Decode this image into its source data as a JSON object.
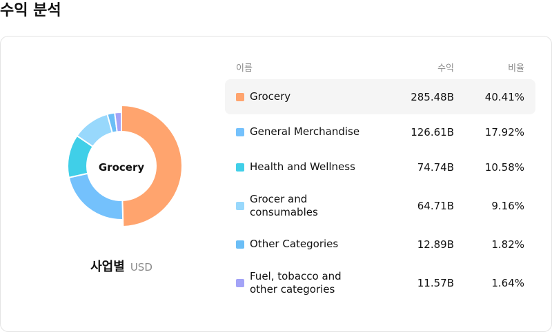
{
  "page": {
    "title": "수익 분석"
  },
  "chart": {
    "center_label": "Grocery",
    "caption": "사업별",
    "unit": "USD"
  },
  "table": {
    "headers": {
      "name": "이름",
      "revenue": "수익",
      "ratio": "비율"
    }
  },
  "chart_data": {
    "type": "pie",
    "title": "",
    "categories": [
      "Grocery",
      "General Merchandise",
      "Health and Wellness",
      "Grocer and consumables",
      "Other Categories",
      "Fuel, tobacco and other categories"
    ],
    "revenue": [
      "285.48B",
      "126.61B",
      "74.74B",
      "64.71B",
      "12.89B",
      "11.57B"
    ],
    "ratio": [
      "40.41%",
      "17.92%",
      "10.58%",
      "9.16%",
      "1.82%",
      "1.64%"
    ],
    "values": [
      285.48,
      126.61,
      74.74,
      64.71,
      12.89,
      11.57
    ],
    "colors": [
      "#ffa46e",
      "#74c1fc",
      "#40cfe8",
      "#98d8fc",
      "#6bbef6",
      "#a3a3f7"
    ],
    "selected": "Grocery"
  }
}
